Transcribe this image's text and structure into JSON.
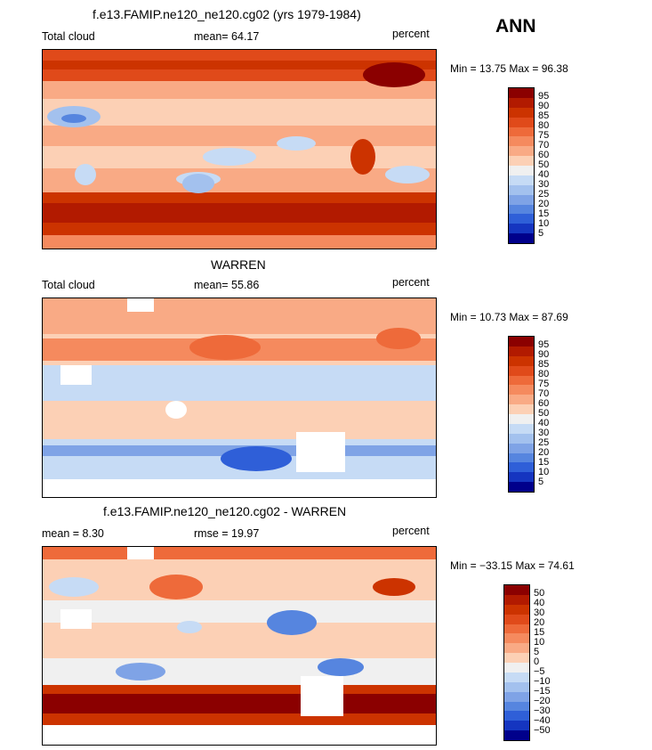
{
  "season": "ANN",
  "panels": [
    {
      "title": "f.e13.FAMIP.ne120_ne120.cg02 (yrs 1979-1984)",
      "left_label": "Total cloud",
      "center_label": "mean=  64.17",
      "right_label": "percent",
      "minmax": "Min =  13.75 Max =  96.38",
      "colorbar": {
        "labels": [
          "95",
          "90",
          "85",
          "80",
          "75",
          "70",
          "60",
          "50",
          "40",
          "30",
          "25",
          "20",
          "15",
          "10",
          "5"
        ],
        "colors": [
          "#8b0000",
          "#b21a00",
          "#cc3300",
          "#e04a1a",
          "#ee6a3a",
          "#f58a5e",
          "#f9aa85",
          "#fcd0b5",
          "#f0f0f0",
          "#c6dbf5",
          "#a3c1ee",
          "#7fa3e6",
          "#5685df",
          "#2f5fd8",
          "#1535c0",
          "#00008b"
        ]
      }
    },
    {
      "title": "WARREN",
      "left_label": "Total cloud",
      "center_label": "mean=  55.86",
      "right_label": "percent",
      "minmax": "Min =  10.73 Max =  87.69",
      "colorbar": {
        "labels": [
          "95",
          "90",
          "85",
          "80",
          "75",
          "70",
          "60",
          "50",
          "40",
          "30",
          "25",
          "20",
          "15",
          "10",
          "5"
        ],
        "colors": [
          "#8b0000",
          "#b21a00",
          "#cc3300",
          "#e04a1a",
          "#ee6a3a",
          "#f58a5e",
          "#f9aa85",
          "#fcd0b5",
          "#f0f0f0",
          "#c6dbf5",
          "#a3c1ee",
          "#7fa3e6",
          "#5685df",
          "#2f5fd8",
          "#1535c0",
          "#00008b"
        ]
      }
    },
    {
      "title": "f.e13.FAMIP.ne120_ne120.cg02 - WARREN",
      "left_label": "mean =    8.30",
      "center_label": "rmse =   19.97",
      "right_label": "percent",
      "minmax": "Min = −33.15 Max =  74.61",
      "colorbar": {
        "labels": [
          "50",
          "40",
          "30",
          "20",
          "15",
          "10",
          "5",
          "0",
          "−5",
          "−10",
          "−15",
          "−20",
          "−30",
          "−40",
          "−50"
        ],
        "colors": [
          "#8b0000",
          "#b21a00",
          "#cc3300",
          "#e04a1a",
          "#ee6a3a",
          "#f58a5e",
          "#f9aa85",
          "#fcd0b5",
          "#f0f0f0",
          "#c6dbf5",
          "#a3c1ee",
          "#7fa3e6",
          "#5685df",
          "#2f5fd8",
          "#1535c0",
          "#00008b"
        ]
      }
    }
  ]
}
